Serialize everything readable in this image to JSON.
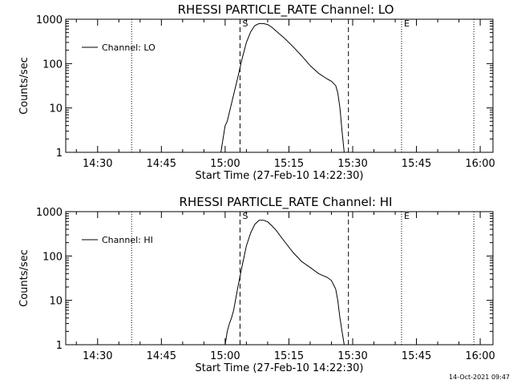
{
  "timestamp": "14-Oct-2021 09:47",
  "chart_data": [
    {
      "type": "line",
      "title": "RHESSI PARTICLE_RATE Channel: LO",
      "xlabel": "Start Time (27-Feb-10 14:22:30)",
      "ylabel": "Counts/sec",
      "y_scale": "log",
      "ylim": [
        1,
        1000
      ],
      "xlim": [
        "14:22:30",
        "16:03:00"
      ],
      "x_ticks": [
        "14:30",
        "14:45",
        "15:00",
        "15:15",
        "15:30",
        "15:45",
        "16:00"
      ],
      "y_ticks": [
        "1",
        "10",
        "100",
        "1000"
      ],
      "legend": {
        "label": "Channel: LO",
        "placement": "top-left"
      },
      "grid": false,
      "markers": [
        {
          "label": "",
          "time": "14:38:00",
          "style": "dotted"
        },
        {
          "label": "S",
          "time": "15:03:30",
          "style": "dashed"
        },
        {
          "label": "",
          "time": "15:29:00",
          "style": "dashed"
        },
        {
          "label": "E",
          "time": "15:41:30",
          "style": "dotted"
        },
        {
          "label": "",
          "time": "15:58:30",
          "style": "dotted"
        }
      ],
      "series": [
        {
          "x": [
            "14:59:00",
            "14:59:30",
            "15:00:00",
            "15:00:30",
            "15:01:00",
            "15:02:00",
            "15:03:00",
            "15:04:00",
            "15:05:00",
            "15:06:00",
            "15:07:00",
            "15:08:00",
            "15:09:00",
            "15:10:00",
            "15:11:00",
            "15:12:00",
            "15:14:00",
            "15:16:00",
            "15:18:00",
            "15:20:00",
            "15:22:00",
            "15:24:00",
            "15:25:00",
            "15:26:00",
            "15:26:30",
            "15:27:00",
            "15:27:30",
            "15:28:00"
          ],
          "y": [
            1,
            2,
            4,
            5,
            8,
            20,
            50,
            130,
            300,
            520,
            720,
            800,
            800,
            760,
            660,
            540,
            370,
            240,
            150,
            90,
            60,
            45,
            40,
            32,
            22,
            10,
            3,
            1
          ]
        }
      ]
    },
    {
      "type": "line",
      "title": "RHESSI PARTICLE_RATE Channel: HI",
      "xlabel": "Start Time (27-Feb-10 14:22:30)",
      "ylabel": "Counts/sec",
      "y_scale": "log",
      "ylim": [
        1,
        1000
      ],
      "xlim": [
        "14:22:30",
        "16:03:00"
      ],
      "x_ticks": [
        "14:30",
        "14:45",
        "15:00",
        "15:15",
        "15:30",
        "15:45",
        "16:00"
      ],
      "y_ticks": [
        "1",
        "10",
        "100",
        "1000"
      ],
      "legend": {
        "label": "Channel: HI",
        "placement": "top-left"
      },
      "grid": false,
      "markers": [
        {
          "label": "",
          "time": "14:38:00",
          "style": "dotted"
        },
        {
          "label": "S",
          "time": "15:03:30",
          "style": "dashed"
        },
        {
          "label": "",
          "time": "15:29:00",
          "style": "dashed"
        },
        {
          "label": "E",
          "time": "15:41:30",
          "style": "dotted"
        },
        {
          "label": "",
          "time": "15:58:30",
          "style": "dotted"
        }
      ],
      "series": [
        {
          "x": [
            "15:00:00",
            "15:00:30",
            "15:01:00",
            "15:01:30",
            "15:02:00",
            "15:03:00",
            "15:04:00",
            "15:05:00",
            "15:06:00",
            "15:07:00",
            "15:08:00",
            "15:09:00",
            "15:10:00",
            "15:11:00",
            "15:12:00",
            "15:14:00",
            "15:16:00",
            "15:18:00",
            "15:20:00",
            "15:22:00",
            "15:24:00",
            "15:25:00",
            "15:26:00",
            "15:26:30",
            "15:27:00",
            "15:27:30",
            "15:28:00"
          ],
          "y": [
            1,
            2,
            3,
            4,
            6,
            20,
            60,
            170,
            330,
            520,
            640,
            640,
            590,
            480,
            380,
            210,
            120,
            75,
            55,
            40,
            33,
            28,
            18,
            10,
            4,
            2,
            1
          ]
        }
      ]
    }
  ]
}
